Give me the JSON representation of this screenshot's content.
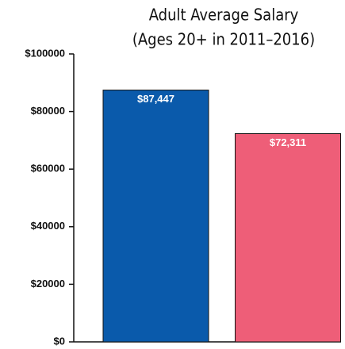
{
  "chart_data": {
    "type": "bar",
    "title": "Adult Average Salary",
    "subtitle": "(Ages 20+ in 2011–2016)",
    "categories": [
      null,
      null
    ],
    "values": [
      87447,
      72311
    ],
    "value_labels": [
      "$87,447",
      "$72,311"
    ],
    "colors": [
      "#0a5aab",
      "#ee5e78"
    ],
    "ylim": [
      0,
      100000
    ],
    "yticks": [
      {
        "value": 0,
        "label": "$0"
      },
      {
        "value": 20000,
        "label": "$20000"
      },
      {
        "value": 40000,
        "label": "$40000"
      },
      {
        "value": 60000,
        "label": "$60000"
      },
      {
        "value": 80000,
        "label": "$80000"
      },
      {
        "value": 100000,
        "label": "$100000"
      }
    ]
  }
}
